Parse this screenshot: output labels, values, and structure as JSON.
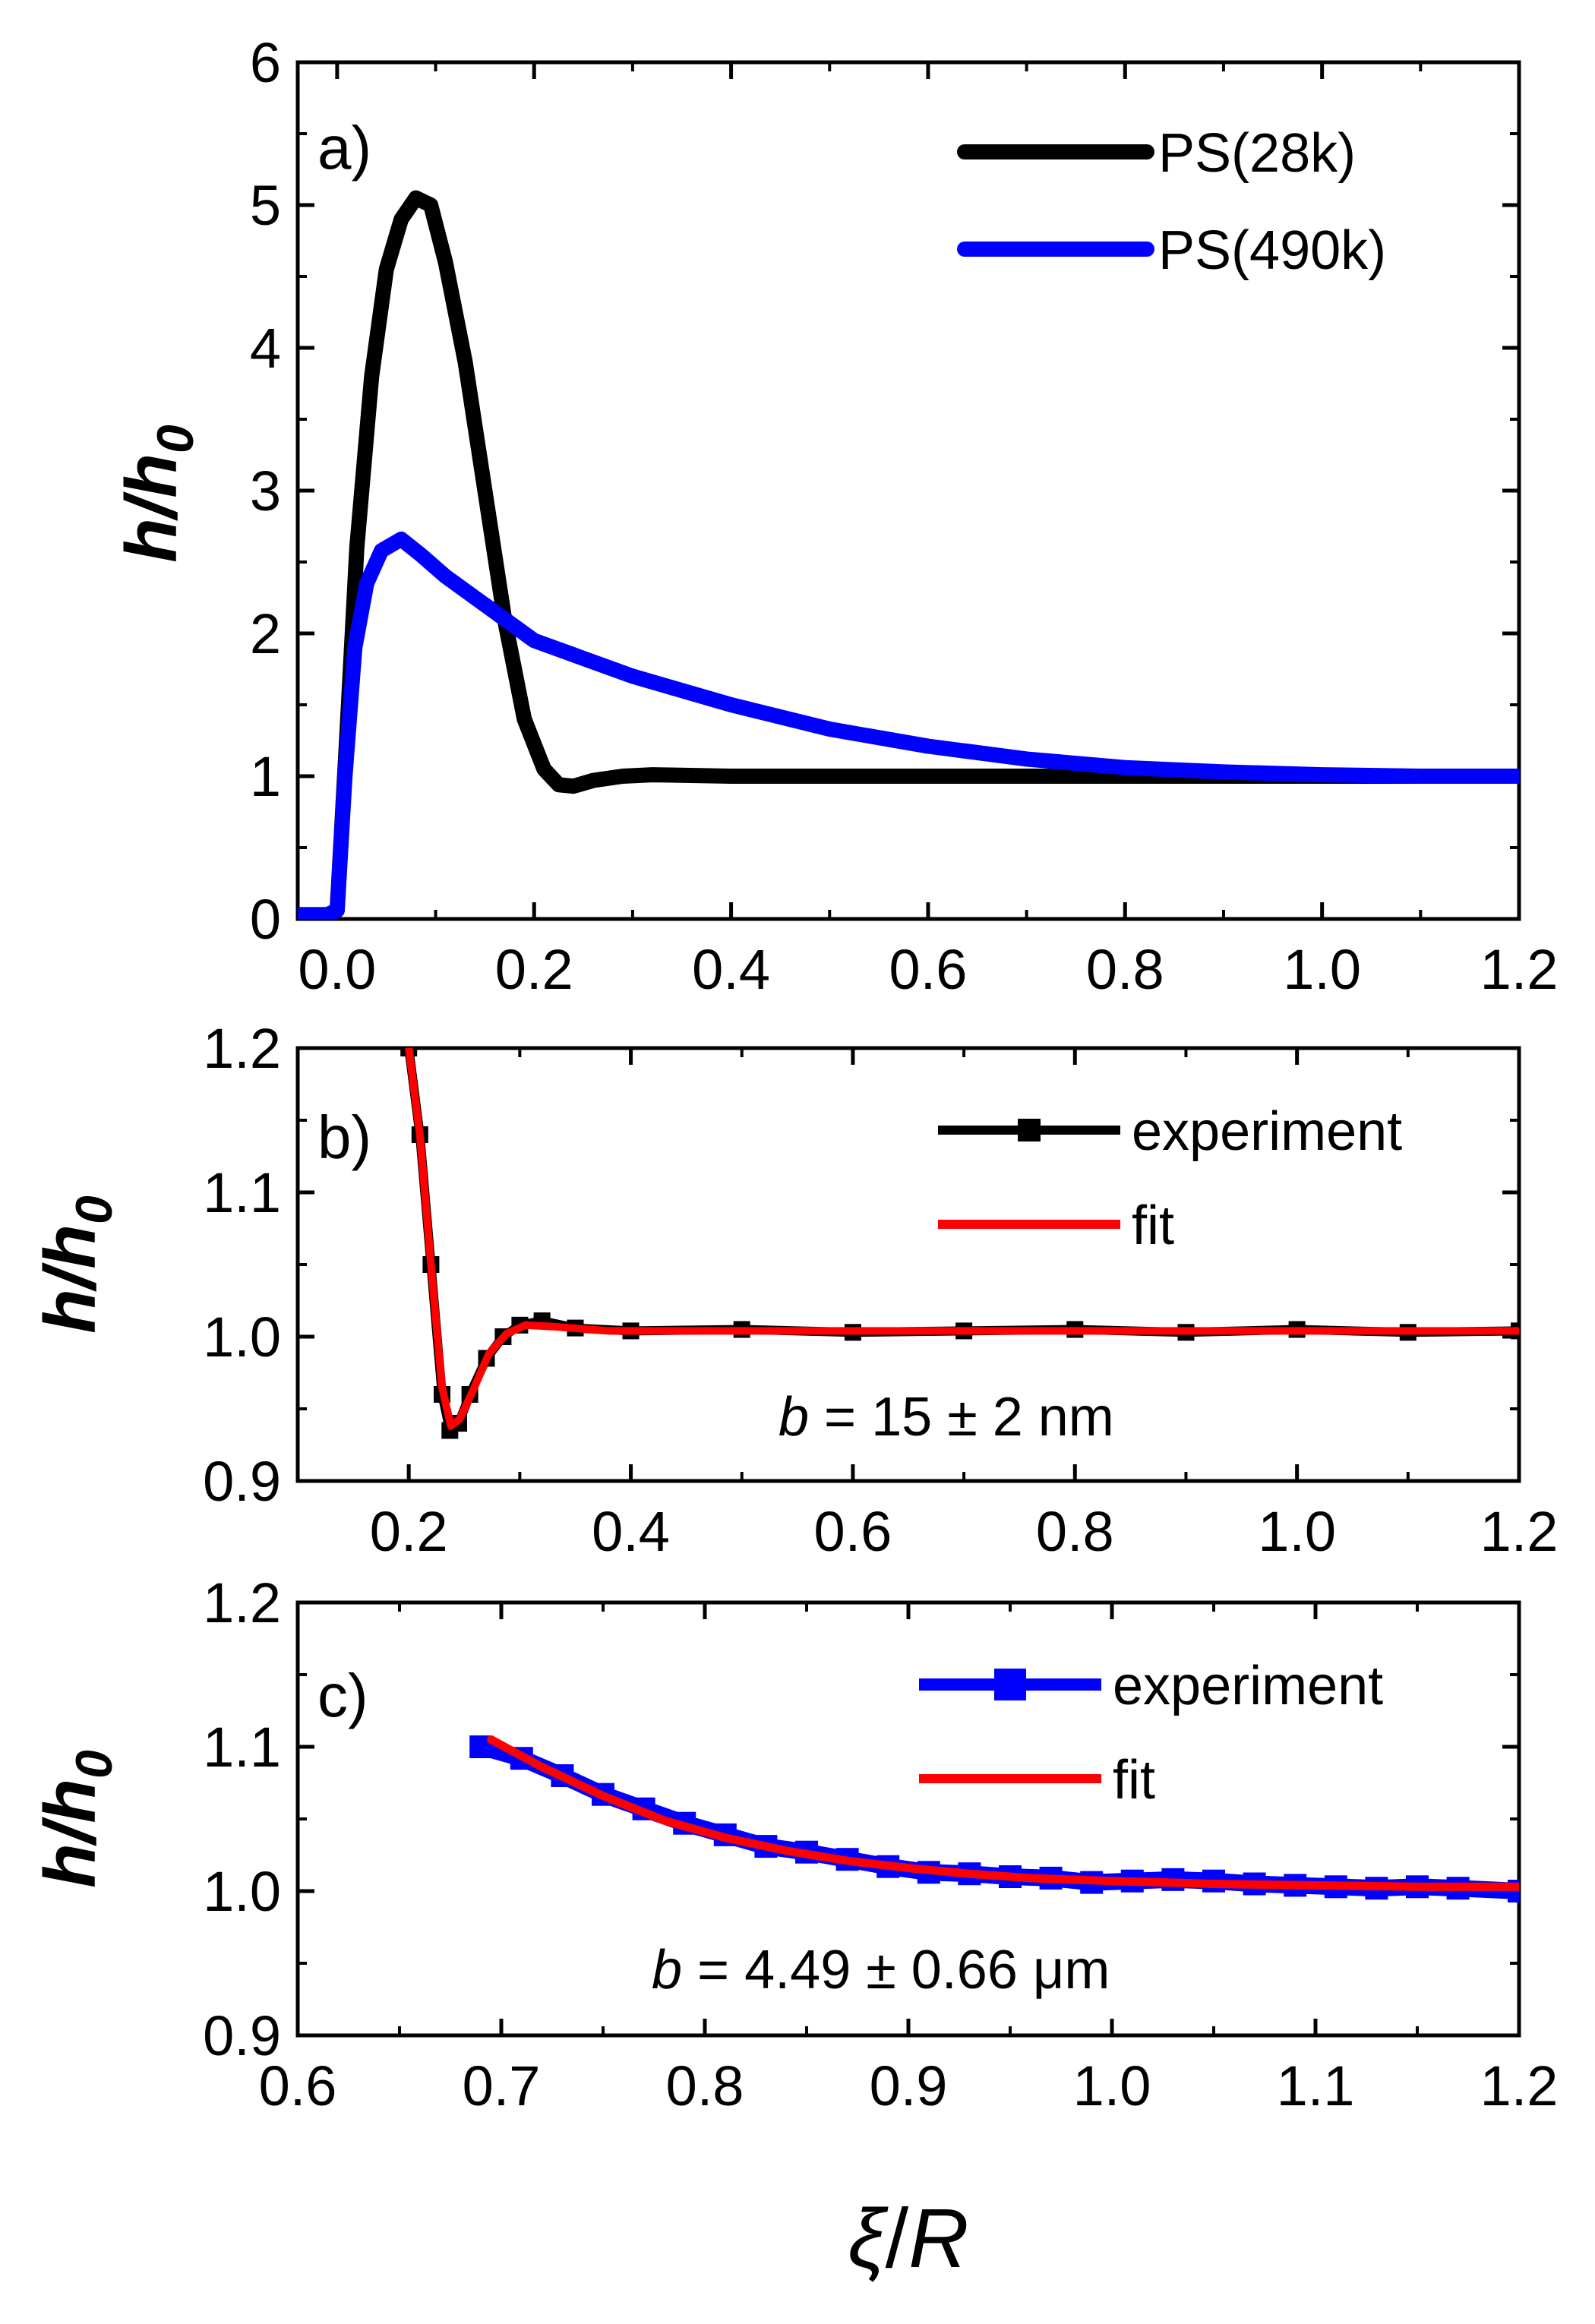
{
  "figure": {
    "x_axis_label": {
      "xi": "ξ",
      "slash": "/",
      "R": "R"
    }
  },
  "chart_data": [
    {
      "type": "line",
      "panel_label": "a)",
      "ylabel": {
        "h": "h",
        "slash": "/",
        "h0": "h",
        "sub": "0"
      },
      "xlim": [
        -0.04,
        1.2
      ],
      "ylim": [
        0,
        6
      ],
      "xticks": [
        0.0,
        0.2,
        0.4,
        0.6,
        0.8,
        1.0,
        1.2
      ],
      "xtick_labels": [
        "0.0",
        "0.2",
        "0.4",
        "0.6",
        "0.8",
        "1.0",
        "1.2"
      ],
      "yticks": [
        0,
        1,
        2,
        3,
        4,
        5,
        6
      ],
      "ytick_labels": [
        "0",
        "1",
        "2",
        "3",
        "4",
        "5",
        "6"
      ],
      "legend_position": "top-right",
      "series": [
        {
          "name": "PS(28k)",
          "color": "#000000",
          "points": [
            [
              -0.04,
              0.03
            ],
            [
              -0.01,
              0.03
            ],
            [
              0.0,
              0.06
            ],
            [
              0.01,
              1.3
            ],
            [
              0.02,
              2.6
            ],
            [
              0.035,
              3.8
            ],
            [
              0.05,
              4.55
            ],
            [
              0.065,
              4.9
            ],
            [
              0.08,
              5.05
            ],
            [
              0.095,
              5.0
            ],
            [
              0.11,
              4.6
            ],
            [
              0.13,
              3.9
            ],
            [
              0.15,
              3.0
            ],
            [
              0.17,
              2.1
            ],
            [
              0.19,
              1.4
            ],
            [
              0.21,
              1.05
            ],
            [
              0.225,
              0.94
            ],
            [
              0.24,
              0.93
            ],
            [
              0.26,
              0.97
            ],
            [
              0.29,
              1.0
            ],
            [
              0.32,
              1.01
            ],
            [
              0.4,
              1.0
            ],
            [
              0.6,
              1.0
            ],
            [
              0.8,
              1.0
            ],
            [
              1.0,
              1.0
            ],
            [
              1.2,
              1.0
            ]
          ]
        },
        {
          "name": "PS(490k)",
          "color": "#0000ff",
          "points": [
            [
              -0.04,
              0.03
            ],
            [
              -0.01,
              0.03
            ],
            [
              0.0,
              0.06
            ],
            [
              0.008,
              1.0
            ],
            [
              0.018,
              1.9
            ],
            [
              0.03,
              2.35
            ],
            [
              0.045,
              2.58
            ],
            [
              0.065,
              2.66
            ],
            [
              0.085,
              2.55
            ],
            [
              0.11,
              2.4
            ],
            [
              0.15,
              2.2
            ],
            [
              0.2,
              1.95
            ],
            [
              0.3,
              1.7
            ],
            [
              0.4,
              1.5
            ],
            [
              0.5,
              1.33
            ],
            [
              0.6,
              1.21
            ],
            [
              0.7,
              1.12
            ],
            [
              0.8,
              1.06
            ],
            [
              0.9,
              1.03
            ],
            [
              1.0,
              1.01
            ],
            [
              1.1,
              1.0
            ],
            [
              1.2,
              1.0
            ]
          ]
        }
      ]
    },
    {
      "type": "line",
      "panel_label": "b)",
      "ylabel": {
        "h": "h",
        "slash": "/",
        "h0": "h",
        "sub": "0"
      },
      "xlim": [
        0.1,
        1.2
      ],
      "ylim": [
        0.9,
        1.2
      ],
      "xticks": [
        0.2,
        0.4,
        0.6,
        0.8,
        1.0,
        1.2
      ],
      "xtick_labels": [
        "0.2",
        "0.4",
        "0.6",
        "0.8",
        "1.0",
        "1.2"
      ],
      "yticks": [
        0.9,
        1.0,
        1.1,
        1.2
      ],
      "ytick_labels": [
        "0.9",
        "1.0",
        "1.1",
        "1.2"
      ],
      "legend_position": "top-right",
      "annotation": {
        "b": "b",
        "text": " = 15 ± 2 nm"
      },
      "series": [
        {
          "name": "experiment",
          "color": "#000000",
          "marker": "square",
          "points": [
            [
              0.2,
              1.2
            ],
            [
              0.21,
              1.14
            ],
            [
              0.22,
              1.05
            ],
            [
              0.23,
              0.96
            ],
            [
              0.237,
              0.935
            ],
            [
              0.245,
              0.94
            ],
            [
              0.255,
              0.96
            ],
            [
              0.27,
              0.985
            ],
            [
              0.285,
              1.0
            ],
            [
              0.3,
              1.008
            ],
            [
              0.32,
              1.011
            ],
            [
              0.35,
              1.006
            ],
            [
              0.4,
              1.004
            ],
            [
              0.5,
              1.005
            ],
            [
              0.6,
              1.003
            ],
            [
              0.7,
              1.004
            ],
            [
              0.8,
              1.005
            ],
            [
              0.9,
              1.003
            ],
            [
              1.0,
              1.005
            ],
            [
              1.1,
              1.003
            ],
            [
              1.2,
              1.004
            ]
          ]
        },
        {
          "name": "fit",
          "color": "#ff0000",
          "points": [
            [
              0.2,
              1.2
            ],
            [
              0.21,
              1.14
            ],
            [
              0.22,
              1.05
            ],
            [
              0.23,
              0.965
            ],
            [
              0.238,
              0.938
            ],
            [
              0.246,
              0.943
            ],
            [
              0.258,
              0.963
            ],
            [
              0.272,
              0.988
            ],
            [
              0.288,
              1.002
            ],
            [
              0.305,
              1.008
            ],
            [
              0.33,
              1.007
            ],
            [
              0.38,
              1.004
            ],
            [
              0.5,
              1.004
            ],
            [
              0.7,
              1.004
            ],
            [
              0.9,
              1.004
            ],
            [
              1.2,
              1.004
            ]
          ]
        }
      ]
    },
    {
      "type": "line",
      "panel_label": "c)",
      "ylabel": {
        "h": "h",
        "slash": "/",
        "h0": "h",
        "sub": "0"
      },
      "xlim": [
        0.6,
        1.2
      ],
      "ylim": [
        0.9,
        1.2
      ],
      "xticks": [
        0.6,
        0.7,
        0.8,
        0.9,
        1.0,
        1.1,
        1.2
      ],
      "xtick_labels": [
        "0.6",
        "0.7",
        "0.8",
        "0.9",
        "1.0",
        "1.1",
        "1.2"
      ],
      "yticks": [
        0.9,
        1.0,
        1.1,
        1.2
      ],
      "ytick_labels": [
        "0.9",
        "1.0",
        "1.1",
        "1.2"
      ],
      "legend_position": "top-right",
      "annotation": {
        "b": "b",
        "text": " = 4.49 ± 0.66 μm"
      },
      "series": [
        {
          "name": "experiment",
          "color": "#0000ff",
          "marker": "square",
          "points": [
            [
              0.69,
              1.1
            ],
            [
              0.71,
              1.092
            ],
            [
              0.73,
              1.08
            ],
            [
              0.75,
              1.067
            ],
            [
              0.77,
              1.057
            ],
            [
              0.79,
              1.047
            ],
            [
              0.81,
              1.039
            ],
            [
              0.83,
              1.031
            ],
            [
              0.85,
              1.027
            ],
            [
              0.87,
              1.022
            ],
            [
              0.89,
              1.017
            ],
            [
              0.91,
              1.013
            ],
            [
              0.93,
              1.012
            ],
            [
              0.95,
              1.01
            ],
            [
              0.97,
              1.009
            ],
            [
              0.99,
              1.006
            ],
            [
              1.01,
              1.007
            ],
            [
              1.03,
              1.008
            ],
            [
              1.05,
              1.007
            ],
            [
              1.07,
              1.005
            ],
            [
              1.09,
              1.004
            ],
            [
              1.11,
              1.003
            ],
            [
              1.13,
              1.002
            ],
            [
              1.15,
              1.003
            ],
            [
              1.17,
              1.002
            ],
            [
              1.2,
              1.0
            ]
          ]
        },
        {
          "name": "fit",
          "color": "#ff0000",
          "points": [
            [
              0.695,
              1.105
            ],
            [
              0.72,
              1.086
            ],
            [
              0.75,
              1.066
            ],
            [
              0.78,
              1.049
            ],
            [
              0.81,
              1.037
            ],
            [
              0.84,
              1.028
            ],
            [
              0.87,
              1.021
            ],
            [
              0.9,
              1.016
            ],
            [
              0.93,
              1.012
            ],
            [
              0.96,
              1.009
            ],
            [
              1.0,
              1.007
            ],
            [
              1.05,
              1.005
            ],
            [
              1.1,
              1.004
            ],
            [
              1.15,
              1.003
            ],
            [
              1.2,
              1.003
            ]
          ]
        }
      ]
    }
  ]
}
